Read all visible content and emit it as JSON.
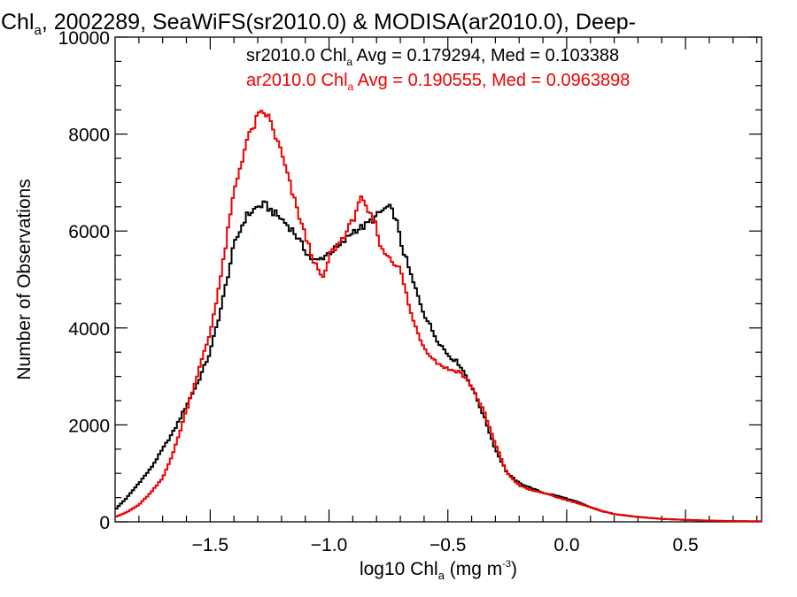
{
  "chart_data": {
    "type": "line",
    "step": true,
    "title": {
      "prefix": "Chl",
      "sub": "a",
      "suffix": ", 2002289, SeaWiFS(sr2010.0) & MODISA(ar2010.0), Deep-"
    },
    "xlabel": {
      "prefix": "log10 Chl",
      "sub": "a",
      "unit_prefix": " (mg m",
      "sup": "-3",
      "unit_suffix": ")"
    },
    "ylabel": "Number of Observations",
    "xlim": [
      -1.9,
      0.82
    ],
    "ylim": [
      0,
      10000
    ],
    "xticks": [
      -1.5,
      -1.0,
      -0.5,
      0.0,
      0.5
    ],
    "xtick_labels": [
      "−1.5",
      "−1.0",
      "−0.5",
      "0.0",
      "0.5"
    ],
    "yticks": [
      0,
      2000,
      4000,
      6000,
      8000,
      10000
    ],
    "ytick_labels": [
      "0",
      "2000",
      "4000",
      "6000",
      "8000",
      "10000"
    ],
    "grid": false,
    "series": [
      {
        "name": "sr2010.0",
        "color": "#000000",
        "annotation": {
          "prefix": "sr2010.0 Chl",
          "sub": "a",
          "suffix": " Avg = 0.179294, Med = 0.103388"
        },
        "x": [
          -1.9,
          -1.85,
          -1.8,
          -1.75,
          -1.7,
          -1.65,
          -1.6,
          -1.55,
          -1.5,
          -1.45,
          -1.4,
          -1.35,
          -1.3,
          -1.27,
          -1.25,
          -1.2,
          -1.15,
          -1.1,
          -1.07,
          -1.05,
          -1.0,
          -0.95,
          -0.9,
          -0.85,
          -0.8,
          -0.78,
          -0.75,
          -0.72,
          -0.7,
          -0.65,
          -0.6,
          -0.55,
          -0.5,
          -0.45,
          -0.4,
          -0.35,
          -0.3,
          -0.25,
          -0.2,
          -0.15,
          -0.1,
          -0.05,
          0.0,
          0.05,
          0.1,
          0.15,
          0.2,
          0.3,
          0.4,
          0.5,
          0.6,
          0.7,
          0.82
        ],
        "y": [
          250,
          500,
          800,
          1100,
          1500,
          1900,
          2400,
          2900,
          3500,
          4500,
          5700,
          6300,
          6500,
          6550,
          6450,
          6250,
          6000,
          5600,
          5400,
          5380,
          5550,
          5700,
          6000,
          6100,
          6300,
          6400,
          6500,
          6300,
          5800,
          5000,
          4300,
          3800,
          3450,
          3250,
          2800,
          2200,
          1500,
          1000,
          800,
          700,
          600,
          550,
          480,
          400,
          300,
          220,
          160,
          100,
          60,
          40,
          25,
          15,
          10
        ]
      },
      {
        "name": "ar2010.0",
        "color": "#ee0000",
        "annotation": {
          "prefix": "ar2010.0 Chl",
          "sub": "a",
          "suffix": " Avg = 0.190555, Med = 0.0963898"
        },
        "x": [
          -1.9,
          -1.85,
          -1.8,
          -1.75,
          -1.7,
          -1.65,
          -1.6,
          -1.55,
          -1.5,
          -1.45,
          -1.4,
          -1.35,
          -1.3,
          -1.27,
          -1.25,
          -1.2,
          -1.15,
          -1.1,
          -1.05,
          -1.02,
          -1.0,
          -0.95,
          -0.9,
          -0.87,
          -0.85,
          -0.8,
          -0.78,
          -0.75,
          -0.7,
          -0.65,
          -0.6,
          -0.55,
          -0.5,
          -0.45,
          -0.4,
          -0.35,
          -0.3,
          -0.25,
          -0.2,
          -0.15,
          -0.1,
          -0.05,
          0.0,
          0.05,
          0.1,
          0.15,
          0.2,
          0.3,
          0.4,
          0.5,
          0.6,
          0.7,
          0.82
        ],
        "y": [
          100,
          200,
          350,
          600,
          900,
          1500,
          2300,
          3100,
          3900,
          5200,
          6800,
          7800,
          8350,
          8450,
          8300,
          7600,
          6700,
          5900,
          5200,
          5000,
          5500,
          5800,
          6200,
          6700,
          6500,
          6100,
          5600,
          5500,
          5200,
          4200,
          3600,
          3300,
          3150,
          3100,
          2800,
          2300,
          1600,
          1000,
          750,
          650,
          600,
          520,
          450,
          380,
          300,
          220,
          160,
          100,
          60,
          40,
          25,
          15,
          10
        ]
      }
    ]
  }
}
